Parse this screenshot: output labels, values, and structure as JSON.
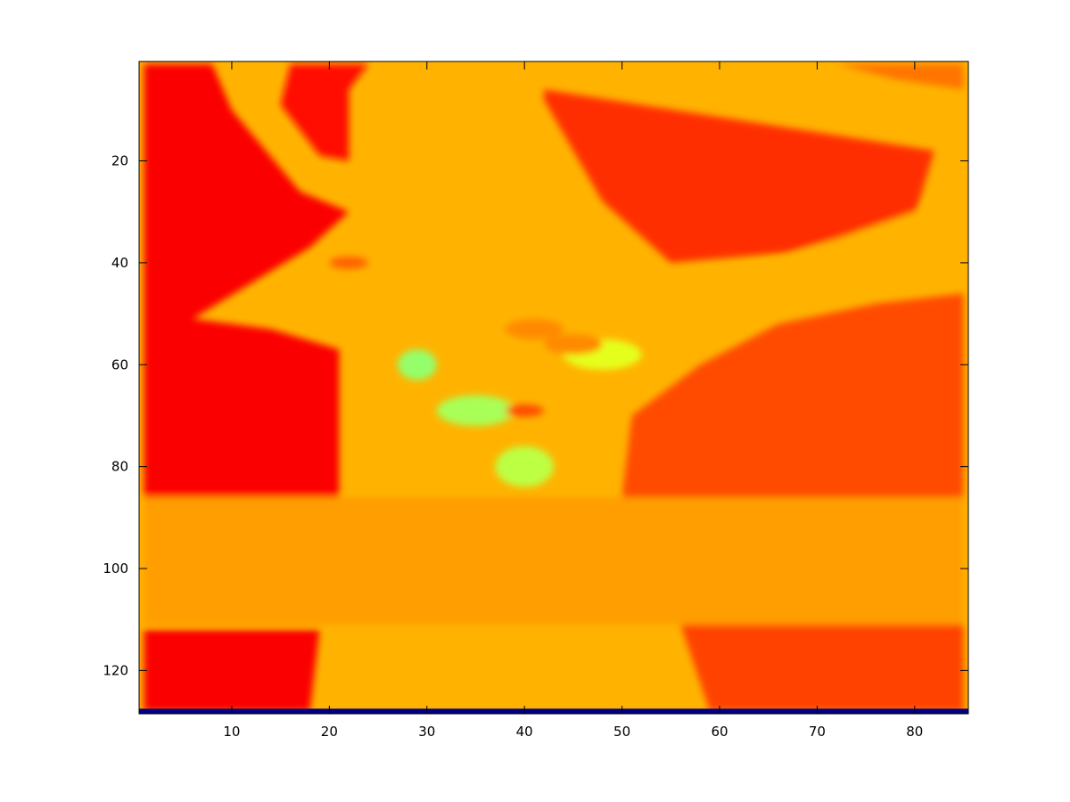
{
  "chart_data": {
    "type": "heatmap",
    "title": "",
    "xlabel": "",
    "ylabel": "",
    "xlim": [
      0.5,
      85.5
    ],
    "ylim": [
      128.5,
      0.5
    ],
    "y_direction": "down",
    "colormap": "jet",
    "clim": [
      0,
      1
    ],
    "columns": 85,
    "rows": 128,
    "xticks": [
      10,
      20,
      30,
      40,
      50,
      60,
      70,
      80
    ],
    "yticks": [
      20,
      40,
      60,
      80,
      100,
      120
    ],
    "xtick_labels": [
      "10",
      "20",
      "30",
      "40",
      "50",
      "60",
      "70",
      "80"
    ],
    "ytick_labels": [
      "20",
      "40",
      "60",
      "80",
      "100",
      "120"
    ],
    "base_value": 0.7,
    "row_128_value": 0.0,
    "regions": [
      {
        "name": "upper-left-red",
        "value": 0.88,
        "polygon": [
          [
            1,
            1
          ],
          [
            8,
            1
          ],
          [
            10,
            10
          ],
          [
            17,
            26
          ],
          [
            22,
            30
          ],
          [
            18,
            37
          ],
          [
            6,
            51
          ],
          [
            14,
            53
          ],
          [
            21,
            57
          ],
          [
            21,
            86
          ],
          [
            1,
            86
          ]
        ]
      },
      {
        "name": "upper-mid-red",
        "value": 0.86,
        "polygon": [
          [
            16,
            1
          ],
          [
            24,
            1
          ],
          [
            22,
            6
          ],
          [
            22,
            20
          ],
          [
            19,
            19
          ],
          [
            15,
            9
          ]
        ]
      },
      {
        "name": "upper-right-red",
        "value": 0.83,
        "polygon": [
          [
            42,
            6
          ],
          [
            82,
            18
          ],
          [
            80,
            31
          ],
          [
            67,
            38
          ],
          [
            55,
            40
          ],
          [
            48,
            28
          ],
          [
            42,
            8
          ]
        ]
      },
      {
        "name": "right-orange",
        "value": 0.8,
        "polygon": [
          [
            85,
            40
          ],
          [
            85,
            86
          ],
          [
            50,
            86
          ],
          [
            51,
            70
          ],
          [
            58,
            60
          ],
          [
            66,
            52
          ],
          [
            76,
            48
          ],
          [
            85,
            46
          ]
        ]
      },
      {
        "name": "lower-left-red",
        "value": 0.88,
        "polygon": [
          [
            1,
            112
          ],
          [
            19,
            112
          ],
          [
            18,
            128
          ],
          [
            1,
            128
          ]
        ]
      },
      {
        "name": "lower-right-orange",
        "value": 0.81,
        "polygon": [
          [
            56,
            111
          ],
          [
            85,
            111
          ],
          [
            85,
            128
          ],
          [
            59,
            128
          ]
        ]
      },
      {
        "name": "horizontal-band",
        "value": 0.72,
        "polygon": [
          [
            1,
            86
          ],
          [
            85,
            86
          ],
          [
            85,
            111
          ],
          [
            1,
            111
          ]
        ]
      },
      {
        "name": "arm-band",
        "value": 0.7,
        "polygon": [
          [
            85,
            25
          ],
          [
            85,
            36
          ],
          [
            70,
            44
          ],
          [
            58,
            50
          ],
          [
            53,
            46
          ],
          [
            65,
            40
          ],
          [
            80,
            30
          ]
        ]
      },
      {
        "name": "top-right-orange",
        "value": 0.76,
        "polygon": [
          [
            72,
            1
          ],
          [
            85,
            1
          ],
          [
            85,
            6
          ],
          [
            78,
            4
          ]
        ]
      }
    ],
    "spots": [
      {
        "name": "cyan-1",
        "value": 0.52,
        "cx": 29,
        "cy": 60,
        "rx": 2,
        "ry": 3
      },
      {
        "name": "cyan-2",
        "value": 0.54,
        "cx": 35,
        "cy": 69,
        "rx": 4,
        "ry": 3
      },
      {
        "name": "cyan-3",
        "value": 0.56,
        "cx": 40,
        "cy": 80,
        "rx": 3,
        "ry": 4
      },
      {
        "name": "greenish",
        "value": 0.6,
        "cx": 48,
        "cy": 58,
        "rx": 4,
        "ry": 3
      },
      {
        "name": "dark-spot-1",
        "value": 0.8,
        "cx": 40,
        "cy": 69,
        "rx": 2,
        "ry": 1.2
      },
      {
        "name": "dark-spot-2",
        "value": 0.78,
        "cx": 22,
        "cy": 40,
        "rx": 2,
        "ry": 1.2
      },
      {
        "name": "eye-left",
        "value": 0.74,
        "cx": 41,
        "cy": 53,
        "rx": 3,
        "ry": 2
      },
      {
        "name": "eye-right",
        "value": 0.74,
        "cx": 45,
        "cy": 56,
        "rx": 3,
        "ry": 2
      }
    ]
  }
}
